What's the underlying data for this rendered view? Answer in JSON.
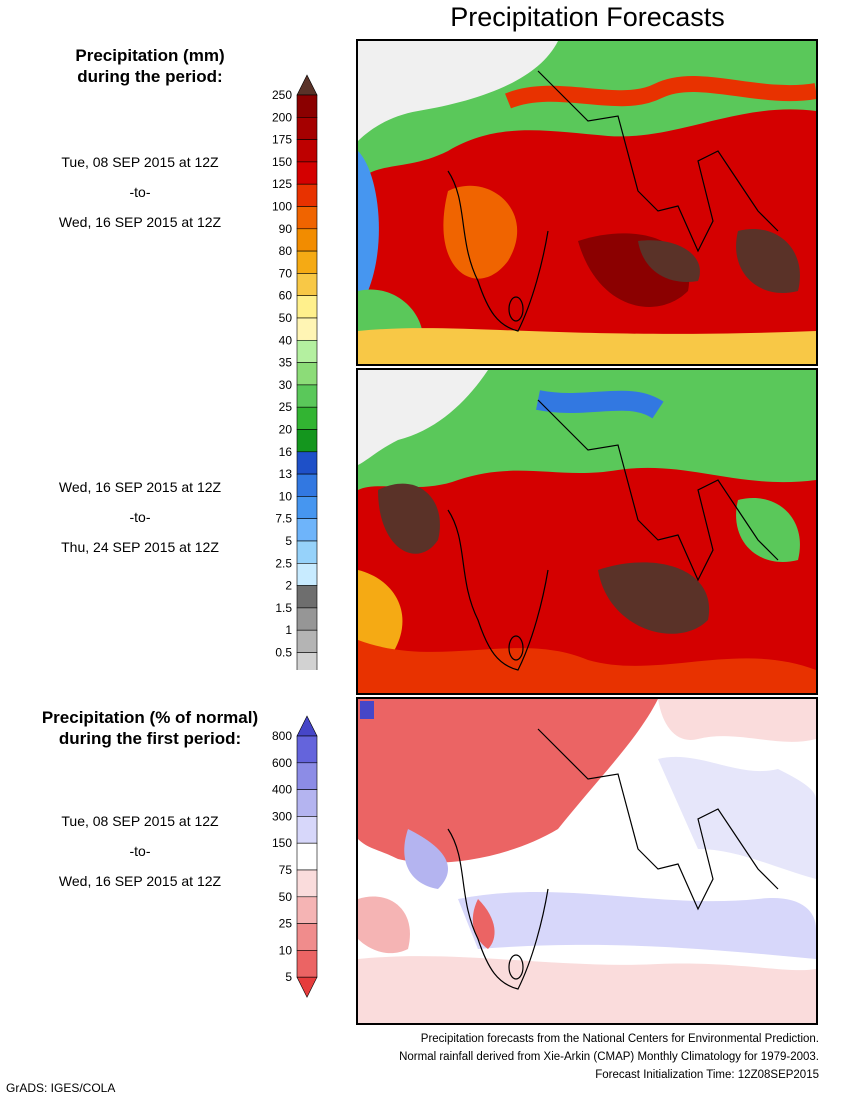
{
  "title": "Precipitation Forecasts",
  "amount_legend": {
    "heading_line1": "Precipitation (mm)",
    "heading_line2": "during the period:",
    "levels": [
      "250",
      "200",
      "175",
      "150",
      "125",
      "100",
      "90",
      "80",
      "70",
      "60",
      "50",
      "40",
      "35",
      "30",
      "25",
      "20",
      "16",
      "13",
      "10",
      "7.5",
      "5",
      "2.5",
      "2",
      "1.5",
      "1",
      "0.5"
    ],
    "colors": [
      "#5a3228",
      "#8b0000",
      "#a50000",
      "#be0000",
      "#d40000",
      "#e83200",
      "#f06400",
      "#f28c00",
      "#f5aa14",
      "#f8c846",
      "#fff08c",
      "#fff5b4",
      "#b4f0a0",
      "#8cdc78",
      "#5ac85a",
      "#32b432",
      "#14961e",
      "#1e50c8",
      "#3278e1",
      "#4696f0",
      "#6eb4fa",
      "#96d2fa",
      "#c8ebff",
      "#6e6e6e",
      "#969696",
      "#b4b4b4",
      "#d2d2d2",
      "#ffffff"
    ]
  },
  "period1": {
    "from": "Tue, 08 SEP 2015 at 12Z",
    "sep": "-to-",
    "to": "Wed, 16 SEP 2015 at 12Z"
  },
  "period2": {
    "from": "Wed, 16 SEP 2015 at 12Z",
    "sep": "-to-",
    "to": "Thu, 24 SEP 2015 at 12Z"
  },
  "anomaly_legend": {
    "heading_line1": "Precipitation (% of normal)",
    "heading_line2": "during the first period:",
    "levels": [
      "800",
      "600",
      "400",
      "300",
      "150",
      "75",
      "50",
      "25",
      "10",
      "5"
    ],
    "colors": [
      "#4646c8",
      "#6464dc",
      "#8c8ce6",
      "#b4b4f0",
      "#d7d7fa",
      "#ffffff",
      "#fadcdc",
      "#f5b4b4",
      "#f08c8c",
      "#eb6464",
      "#e63c3c"
    ]
  },
  "period3": {
    "from": "Tue, 08 SEP 2015 at 12Z",
    "sep": "-to-",
    "to": "Wed, 16 SEP 2015 at 12Z"
  },
  "credits": {
    "line1": "Precipitation forecasts from the National Centers for Environmental Prediction.",
    "line2": "Normal rainfall derived from Xie-Arkin (CMAP) Monthly Climatology for 1979-2003.",
    "line3": "Forecast Initialization Time: 12Z08SEP2015"
  },
  "software": "GrADS: IGES/COLA"
}
